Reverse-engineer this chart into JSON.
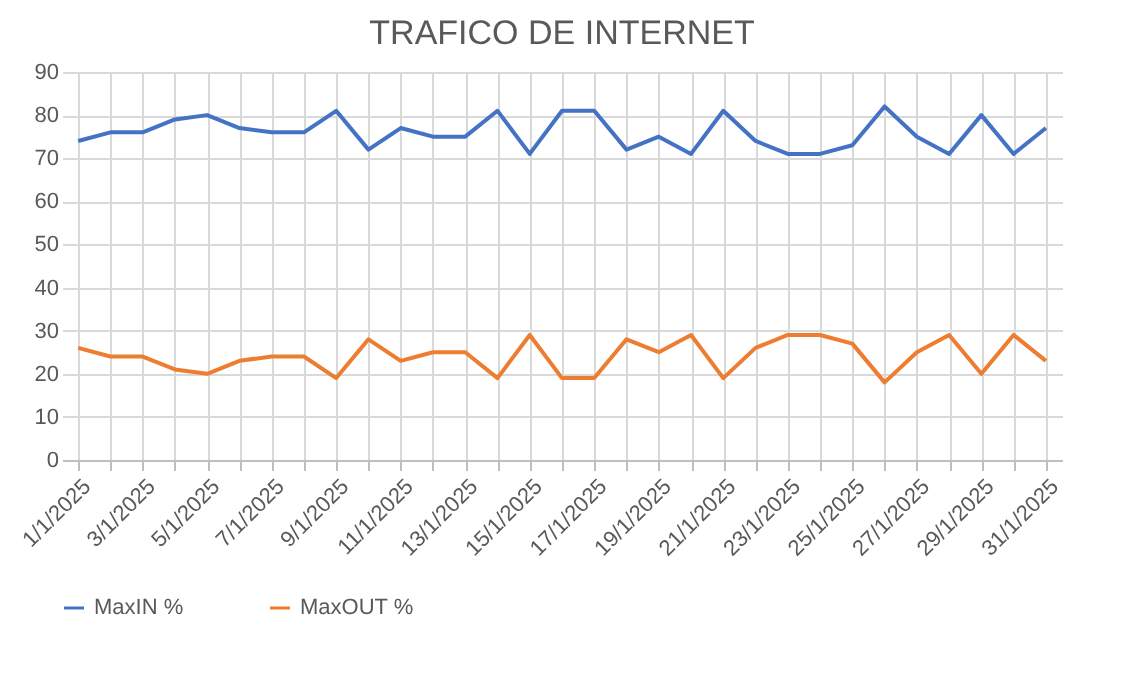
{
  "chart_data": {
    "type": "line",
    "title": "TRAFICO DE INTERNET",
    "categories": [
      "1/1/2025",
      null,
      "3/1/2025",
      null,
      "5/1/2025",
      null,
      "7/1/2025",
      null,
      "9/1/2025",
      null,
      "11/1/2025",
      null,
      "13/1/2025",
      null,
      "15/1/2025",
      null,
      "17/1/2025",
      null,
      "19/1/2025",
      null,
      "21/1/2025",
      null,
      "23/1/2025",
      null,
      "25/1/2025",
      null,
      "27/1/2025",
      null,
      "29/1/2025",
      null,
      "31/1/2025"
    ],
    "series": [
      {
        "name": "MaxIN %",
        "color": "#4472c4",
        "values": [
          74,
          76,
          76,
          79,
          80,
          77,
          76,
          76,
          81,
          72,
          77,
          75,
          75,
          81,
          71,
          81,
          81,
          72,
          75,
          71,
          81,
          74,
          71,
          71,
          73,
          82,
          75,
          71,
          80,
          71,
          77
        ]
      },
      {
        "name": "MaxOUT %",
        "color": "#ed7d31",
        "values": [
          26,
          24,
          24,
          21,
          20,
          23,
          24,
          24,
          19,
          28,
          23,
          25,
          25,
          19,
          29,
          19,
          19,
          28,
          25,
          29,
          19,
          26,
          29,
          29,
          27,
          18,
          25,
          29,
          20,
          29,
          23
        ]
      }
    ],
    "ylim": [
      0,
      90
    ],
    "yticks": [
      0,
      10,
      20,
      30,
      40,
      50,
      60,
      70,
      80,
      90
    ],
    "grid": true,
    "legend": "bottom",
    "marker": "none",
    "line_style": "solid"
  }
}
